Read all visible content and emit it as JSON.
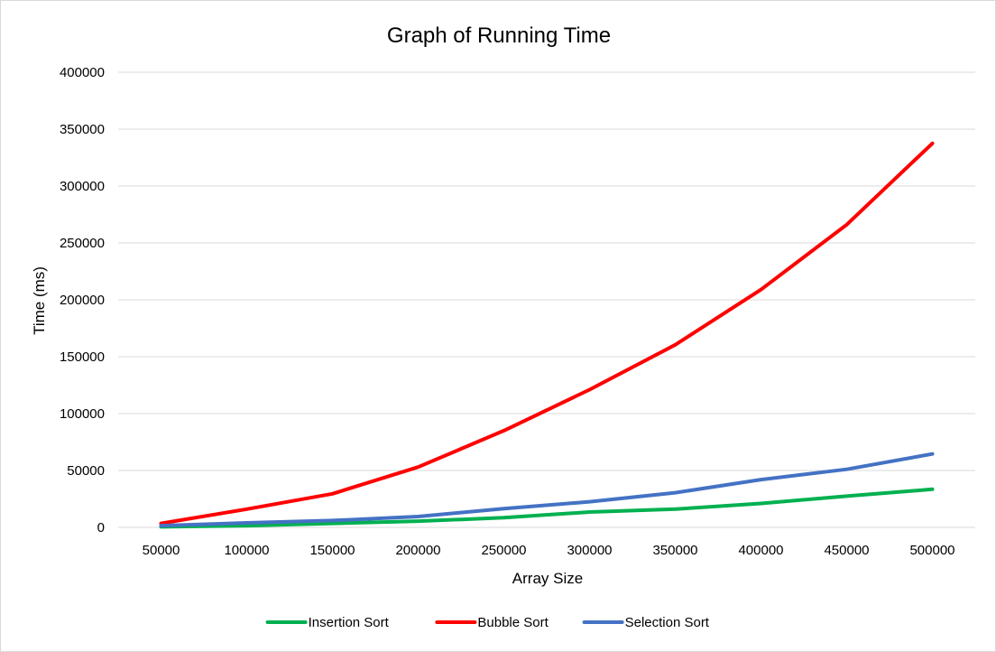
{
  "chart_data": {
    "type": "line",
    "title": "Graph of Running Time",
    "xlabel": "Array Size",
    "ylabel": "Time (ms)",
    "categories": [
      "50000",
      "100000",
      "150000",
      "200000",
      "250000",
      "300000",
      "350000",
      "400000",
      "450000",
      "500000"
    ],
    "yticks": [
      "0",
      "50000",
      "100000",
      "150000",
      "200000",
      "250000",
      "300000",
      "350000",
      "400000"
    ],
    "ylim": [
      0,
      400000
    ],
    "grid": "horizontal",
    "legend_position": "bottom",
    "series": [
      {
        "name": "Insertion Sort",
        "color": "#00b050",
        "values": [
          500,
          1500,
          3500,
          5500,
          8500,
          13500,
          16000,
          21000,
          27500,
          33500
        ]
      },
      {
        "name": "Bubble Sort",
        "color": "#ff0000",
        "values": [
          3500,
          16000,
          29500,
          53000,
          85000,
          121000,
          160500,
          209000,
          266000,
          337500
        ]
      },
      {
        "name": "Selection Sort",
        "color": "#4472c4",
        "values": [
          1500,
          4000,
          6000,
          9500,
          16500,
          22500,
          30500,
          42000,
          51000,
          64500
        ]
      }
    ]
  }
}
